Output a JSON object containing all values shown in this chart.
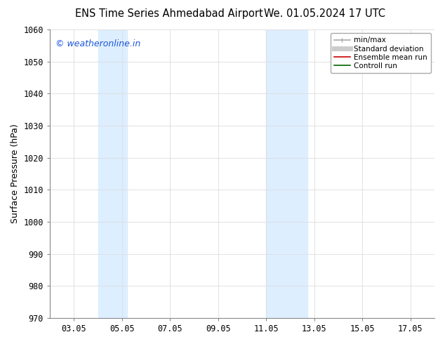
{
  "title_left": "ENS Time Series Ahmedabad Airport",
  "title_right": "We. 01.05.2024 17 UTC",
  "ylabel": "Surface Pressure (hPa)",
  "ylim": [
    970,
    1060
  ],
  "yticks": [
    970,
    980,
    990,
    1000,
    1010,
    1020,
    1030,
    1040,
    1050,
    1060
  ],
  "xtick_labels": [
    "03.05",
    "05.05",
    "07.05",
    "09.05",
    "11.05",
    "13.05",
    "15.05",
    "17.05"
  ],
  "xtick_positions": [
    3,
    5,
    7,
    9,
    11,
    13,
    15,
    17
  ],
  "xlim": [
    2.0,
    18.0
  ],
  "shaded_bands": [
    {
      "x_start": 4.0,
      "x_end": 5.2,
      "color": "#ddeeff"
    },
    {
      "x_start": 11.0,
      "x_end": 12.7,
      "color": "#ddeeff"
    }
  ],
  "watermark_text": "© weatheronline.in",
  "watermark_color": "#1a56db",
  "legend_items": [
    {
      "label": "min/max",
      "color": "#aaaaaa",
      "lw": 1.2
    },
    {
      "label": "Standard deviation",
      "color": "#cccccc",
      "lw": 5
    },
    {
      "label": "Ensemble mean run",
      "color": "#cc0000",
      "lw": 1.2
    },
    {
      "label": "Controll run",
      "color": "#006600",
      "lw": 1.2
    }
  ],
  "bg_color": "#ffffff",
  "plot_bg_color": "#ffffff",
  "grid_color": "#dddddd",
  "tick_fontsize": 8.5,
  "label_fontsize": 9,
  "title_fontsize": 10.5,
  "watermark_fontsize": 9
}
